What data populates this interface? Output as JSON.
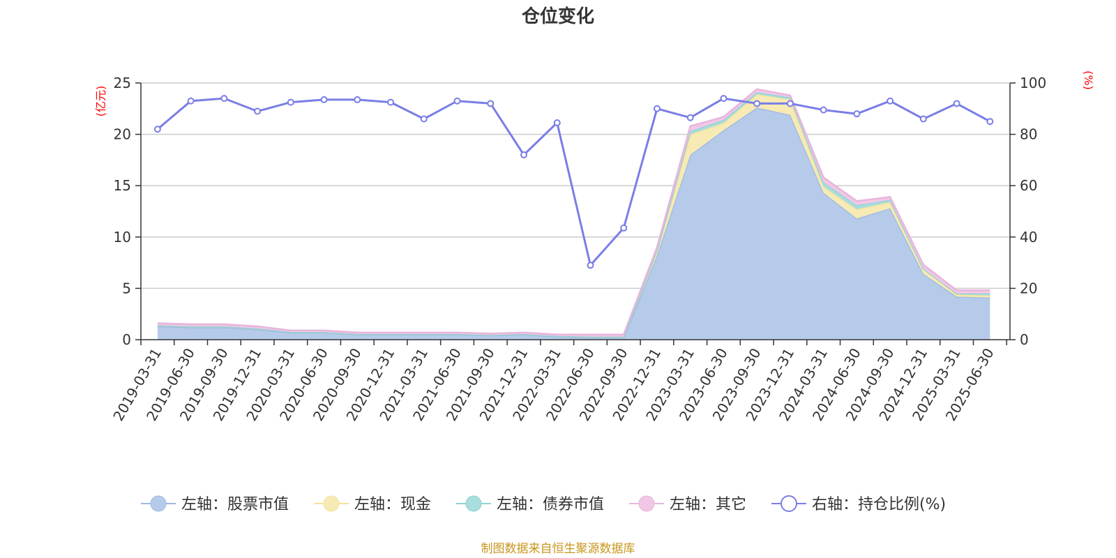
{
  "chart_data": {
    "type": "area",
    "title": "仓位变化",
    "source": "制图数据来自恒生聚源数据库",
    "left_axis": {
      "unit": "(亿元)",
      "min": 0,
      "max": 25,
      "ticks": [
        "0",
        "5",
        "10",
        "15",
        "20",
        "25"
      ]
    },
    "right_axis": {
      "unit": "(%)",
      "min": 0,
      "max": 100,
      "ticks": [
        "0",
        "20",
        "40",
        "60",
        "80",
        "100"
      ]
    },
    "categories": [
      "2019-03-31",
      "2019-06-30",
      "2019-09-30",
      "2019-12-31",
      "2020-03-31",
      "2020-06-30",
      "2020-09-30",
      "2020-12-31",
      "2021-03-31",
      "2021-06-30",
      "2021-09-30",
      "2021-12-31",
      "2022-03-31",
      "2022-06-30",
      "2022-09-30",
      "2022-12-31",
      "2023-03-31",
      "2023-06-30",
      "2023-09-30",
      "2023-12-31",
      "2024-03-31",
      "2024-06-30",
      "2024-09-30",
      "2024-12-31",
      "2025-03-31",
      "2025-06-30"
    ],
    "stacked_series": [
      {
        "name": "左轴：股票市值",
        "color": "#9db8e0",
        "fill": "#b6cbea",
        "values": [
          1.3,
          1.2,
          1.2,
          1.0,
          0.7,
          0.7,
          0.5,
          0.5,
          0.5,
          0.5,
          0.4,
          0.5,
          0.3,
          0.2,
          0.2,
          8.2,
          18.0,
          20.4,
          22.6,
          21.9,
          14.3,
          11.8,
          12.8,
          6.4,
          4.2,
          4.1
        ]
      },
      {
        "name": "左轴：现金",
        "color": "#f5e29a",
        "fill": "#f7eab4",
        "values": [
          0.1,
          0.1,
          0.1,
          0.1,
          0.05,
          0.05,
          0.05,
          0.05,
          0.05,
          0.05,
          0.05,
          0.05,
          0.05,
          0.1,
          0.1,
          0.5,
          2.0,
          0.7,
          1.3,
          1.5,
          0.6,
          0.9,
          0.6,
          0.5,
          0.2,
          0.2
        ]
      },
      {
        "name": "左轴：债券市值",
        "color": "#8fd3d3",
        "fill": "#a8dede",
        "values": [
          0,
          0,
          0,
          0,
          0,
          0,
          0,
          0,
          0,
          0,
          0,
          0,
          0,
          0,
          0,
          0,
          0.3,
          0.3,
          0.2,
          0.2,
          0.4,
          0.4,
          0.2,
          0,
          0.1,
          0.2
        ]
      },
      {
        "name": "左轴：其它",
        "color": "#e8b5dc",
        "fill": "#f0c8e6",
        "values": [
          0.2,
          0.2,
          0.2,
          0.2,
          0.15,
          0.15,
          0.15,
          0.15,
          0.15,
          0.15,
          0.15,
          0.15,
          0.15,
          0.2,
          0.2,
          0.3,
          0.5,
          0.3,
          0.3,
          0.2,
          0.5,
          0.4,
          0.3,
          0.4,
          0.3,
          0.3
        ]
      }
    ],
    "line_series": {
      "name": "右轴：持仓比例(%)",
      "color": "#7a7ee6",
      "values": [
        82,
        93,
        94,
        89,
        92.5,
        93.5,
        93.5,
        92.5,
        86,
        93,
        92,
        72,
        84.5,
        29,
        43.5,
        90,
        86.5,
        94,
        92,
        92,
        89.5,
        88,
        93,
        86,
        92,
        85
      ]
    },
    "legend_placement": "bottom",
    "grid": true
  }
}
